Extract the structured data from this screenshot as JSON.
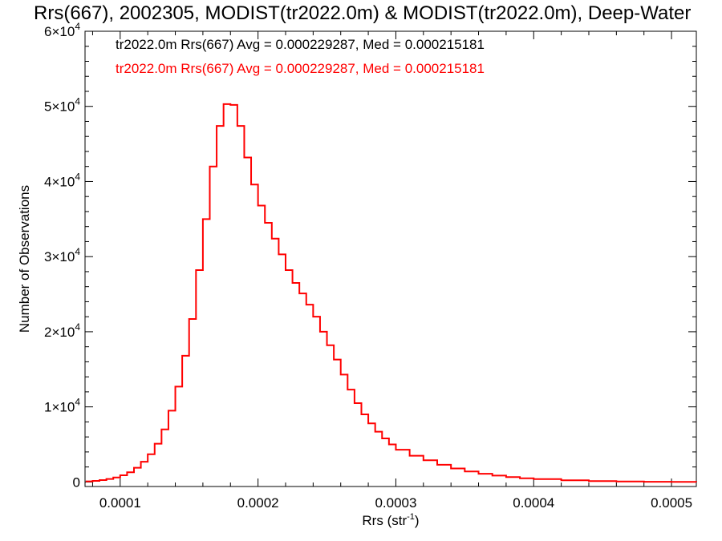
{
  "chart_data": {
    "type": "line",
    "title": "Rrs(667), 2002305, MODIST(tr2022.0m) & MODIST(tr2022.0m), Deep-Water",
    "xlabel": "Rrs (str",
    "xlabel_sup": "-1",
    "xlabel_close": ")",
    "ylabel": "Number of Observations",
    "xlim": [
      7.45e-05,
      0.000518
    ],
    "ylim": [
      -600,
      60000
    ],
    "x_ticks": [
      {
        "value": 0.0001,
        "label": "0.0001"
      },
      {
        "value": 0.0002,
        "label": "0.0002"
      },
      {
        "value": 0.0003,
        "label": "0.0003"
      },
      {
        "value": 0.0004,
        "label": "0.0004"
      },
      {
        "value": 0.0005,
        "label": "0.0005"
      }
    ],
    "y_ticks": [
      {
        "value": 0,
        "label": "0",
        "sup": ""
      },
      {
        "value": 10000,
        "label": "1×10",
        "sup": "4"
      },
      {
        "value": 20000,
        "label": "2×10",
        "sup": "4"
      },
      {
        "value": 30000,
        "label": "3×10",
        "sup": "4"
      },
      {
        "value": 40000,
        "label": "4×10",
        "sup": "4"
      },
      {
        "value": 50000,
        "label": "5×10",
        "sup": "4"
      },
      {
        "value": 60000,
        "label": "6×10",
        "sup": "4"
      }
    ],
    "annotations": [
      {
        "text": "tr2022.0m Rrs(667) Avg = 0.000229287, Med = 0.000215181",
        "color": "#000000"
      },
      {
        "text": "tr2022.0m Rrs(667) Avg = 0.000229287, Med = 0.000215181",
        "color": "#ff0000"
      }
    ],
    "series": [
      {
        "color": "#ff0000",
        "step": true,
        "x": [
          7.5e-05,
          8e-05,
          8.5e-05,
          9e-05,
          9.5e-05,
          0.0001,
          0.000105,
          0.00011,
          0.000115,
          0.00012,
          0.000125,
          0.00013,
          0.000135,
          0.00014,
          0.000145,
          0.00015,
          0.000155,
          0.00016,
          0.000165,
          0.00017,
          0.000175,
          0.00018,
          0.000185,
          0.00019,
          0.000195,
          0.0002,
          0.000205,
          0.00021,
          0.000215,
          0.00022,
          0.000225,
          0.00023,
          0.000235,
          0.00024,
          0.000245,
          0.00025,
          0.000255,
          0.00026,
          0.000265,
          0.00027,
          0.000275,
          0.00028,
          0.000285,
          0.00029,
          0.000295,
          0.0003,
          0.00031,
          0.00032,
          0.00033,
          0.00034,
          0.00035,
          0.00036,
          0.00037,
          0.00038,
          0.00039,
          0.0004,
          0.00042,
          0.00044,
          0.00046,
          0.00048,
          0.0005,
          0.000518
        ],
        "y": [
          80,
          150,
          250,
          400,
          600,
          900,
          1300,
          1900,
          2700,
          3700,
          5100,
          7000,
          9500,
          12700,
          16800,
          21700,
          28200,
          35000,
          42000,
          47400,
          50300,
          50200,
          47400,
          43200,
          39600,
          36800,
          34500,
          32400,
          30300,
          28200,
          26500,
          25100,
          23600,
          22000,
          20000,
          18200,
          16300,
          14300,
          12300,
          10500,
          9000,
          7800,
          6700,
          5800,
          5000,
          4300,
          3500,
          2900,
          2300,
          1800,
          1400,
          1100,
          850,
          650,
          500,
          380,
          220,
          120,
          60,
          30,
          15,
          10
        ]
      }
    ]
  }
}
